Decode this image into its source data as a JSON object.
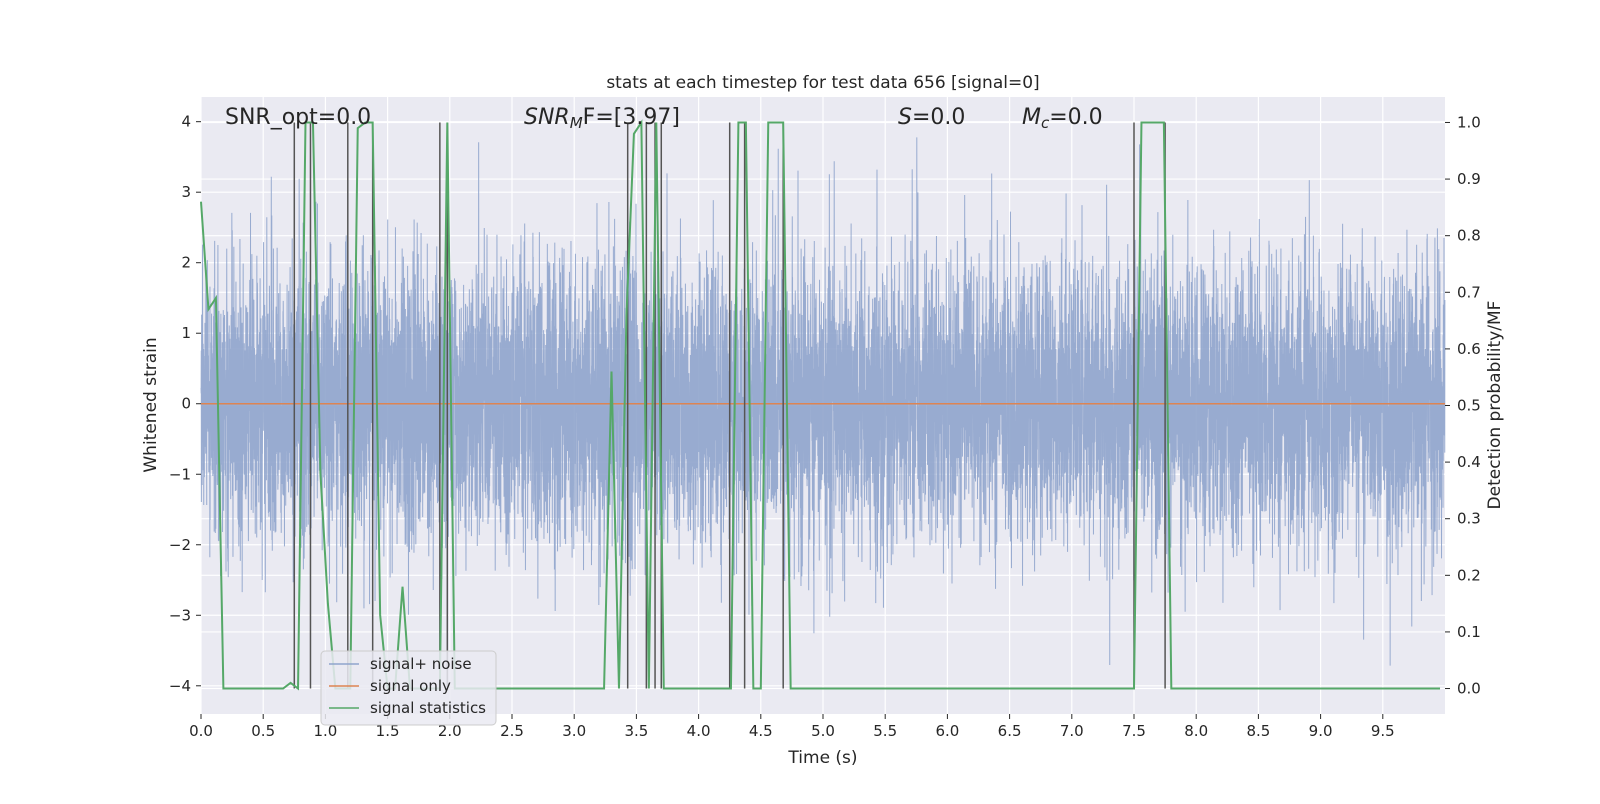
{
  "chart_data": {
    "type": "line",
    "title": "stats at each timestep for test data 656 [signal=0]",
    "xlabel": "Time (s)",
    "ylabel": "Whitened strain",
    "y2label": "Detection probability/MF",
    "xlim": [
      0,
      10
    ],
    "ylim": [
      -4.4,
      4.35
    ],
    "y2lim": [
      -0.045,
      1.045
    ],
    "x_ticks": [
      0.0,
      0.5,
      1.0,
      1.5,
      2.0,
      2.5,
      3.0,
      3.5,
      4.0,
      4.5,
      5.0,
      5.5,
      6.0,
      6.5,
      7.0,
      7.5,
      8.0,
      8.5,
      9.0,
      9.5
    ],
    "x_tick_labels": [
      "0.0",
      "0.5",
      "1.0",
      "1.5",
      "2.0",
      "2.5",
      "3.0",
      "3.5",
      "4.0",
      "4.5",
      "5.0",
      "5.5",
      "6.0",
      "6.5",
      "7.0",
      "7.5",
      "8.0",
      "8.5",
      "9.0",
      "9.5"
    ],
    "y_ticks": [
      -4,
      -3,
      -2,
      -1,
      0,
      1,
      2,
      3,
      4
    ],
    "y_tick_labels": [
      "−4",
      "−3",
      "−2",
      "−1",
      "0",
      "1",
      "2",
      "3",
      "4"
    ],
    "y2_ticks": [
      0.0,
      0.1,
      0.2,
      0.3,
      0.4,
      0.5,
      0.6,
      0.7,
      0.8,
      0.9,
      1.0
    ],
    "y2_tick_labels": [
      "0.0",
      "0.1",
      "0.2",
      "0.3",
      "0.4",
      "0.5",
      "0.6",
      "0.7",
      "0.8",
      "0.9",
      "1.0"
    ],
    "grid": true,
    "legend_position": "lower-left",
    "annotations": {
      "snr_opt": "SNR_opt=0.0",
      "snr_mf_main": "SNR",
      "snr_mf_sub": "M",
      "snr_mf_tail": "F=[3.97]",
      "s_main": "S",
      "s_tail": "=0.0",
      "mc_main": "M",
      "mc_sub": "c",
      "mc_tail": "=0.0"
    },
    "series": [
      {
        "name": "signal+ noise",
        "color": "#8fa4cc",
        "kind": "noise",
        "sample_rate": 1000,
        "std": 1.0,
        "range": [
          -4.05,
          3.95
        ]
      },
      {
        "name": "signal only",
        "color": "#dd8452",
        "x": [
          0,
          10
        ],
        "y": [
          0,
          0
        ]
      },
      {
        "name": "signal statistics",
        "color": "#55a868",
        "axis": "right",
        "x": [
          0.0,
          0.06,
          0.12,
          0.18,
          0.24,
          0.3,
          0.36,
          0.42,
          0.48,
          0.54,
          0.6,
          0.66,
          0.72,
          0.78,
          0.84,
          0.9,
          0.96,
          1.02,
          1.08,
          1.14,
          1.2,
          1.26,
          1.32,
          1.38,
          1.44,
          1.5,
          1.56,
          1.62,
          1.68,
          1.74,
          1.8,
          1.86,
          1.92,
          1.98,
          2.04,
          2.1,
          2.16,
          2.22,
          2.28,
          2.34,
          2.4,
          2.46,
          2.52,
          2.58,
          2.64,
          2.7,
          2.76,
          2.82,
          2.88,
          2.94,
          3.0,
          3.06,
          3.12,
          3.18,
          3.24,
          3.3,
          3.36,
          3.42,
          3.48,
          3.54,
          3.6,
          3.66,
          3.72,
          3.78,
          3.84,
          3.9,
          3.96,
          4.02,
          4.08,
          4.14,
          4.2,
          4.26,
          4.32,
          4.38,
          4.44,
          4.5,
          4.56,
          4.62,
          4.68,
          4.74,
          4.8,
          4.86,
          4.92,
          4.98,
          5.04,
          5.1,
          5.16,
          5.22,
          5.28,
          5.34,
          5.4,
          5.46,
          5.52,
          5.58,
          5.64,
          5.7,
          5.76,
          5.82,
          5.88,
          5.94,
          6.0,
          6.06,
          6.12,
          6.18,
          6.24,
          6.3,
          6.36,
          6.42,
          6.48,
          6.54,
          6.6,
          6.66,
          6.72,
          6.78,
          6.84,
          6.9,
          6.96,
          7.02,
          7.08,
          7.14,
          7.2,
          7.26,
          7.32,
          7.38,
          7.44,
          7.5,
          7.56,
          7.62,
          7.68,
          7.74,
          7.8,
          7.86,
          7.92,
          7.98,
          8.04,
          8.1,
          8.16,
          8.22,
          8.28,
          8.34,
          8.4,
          8.46,
          8.52,
          8.58,
          8.64,
          8.7,
          8.76,
          8.82,
          8.88,
          8.94,
          9.0,
          9.06,
          9.12,
          9.18,
          9.24,
          9.3,
          9.36,
          9.42,
          9.48,
          9.54,
          9.6,
          9.66,
          9.72,
          9.78,
          9.84,
          9.9,
          9.96
        ],
        "y": [
          0.86,
          0.67,
          0.69,
          0.0,
          0.0,
          0.0,
          0.0,
          0.0,
          0.0,
          0.0,
          0.0,
          0.0,
          0.01,
          0.0,
          1.0,
          1.0,
          0.38,
          0.15,
          0.0,
          0.0,
          0.0,
          0.99,
          1.0,
          1.0,
          0.13,
          0.0,
          0.0,
          0.18,
          0.0,
          0.0,
          0.0,
          0.0,
          0.0,
          1.0,
          0.0,
          0.0,
          0.0,
          0.0,
          0.0,
          0.0,
          0.0,
          0.0,
          0.0,
          0.0,
          0.0,
          0.0,
          0.0,
          0.0,
          0.0,
          0.0,
          0.0,
          0.0,
          0.0,
          0.0,
          0.0,
          0.56,
          0.0,
          0.66,
          0.98,
          1.0,
          0.0,
          1.0,
          0.0,
          0.0,
          0.0,
          0.0,
          0.0,
          0.0,
          0.0,
          0.0,
          0.0,
          0.0,
          1.0,
          1.0,
          0.0,
          0.0,
          1.0,
          1.0,
          1.0,
          0.0,
          0.0,
          0.0,
          0.0,
          0.0,
          0.0,
          0.0,
          0.0,
          0.0,
          0.0,
          0.0,
          0.0,
          0.0,
          0.0,
          0.0,
          0.0,
          0.0,
          0.0,
          0.0,
          0.0,
          0.0,
          0.0,
          0.0,
          0.0,
          0.0,
          0.0,
          0.0,
          0.0,
          0.0,
          0.0,
          0.0,
          0.0,
          0.0,
          0.0,
          0.0,
          0.0,
          0.0,
          0.0,
          0.0,
          0.0,
          0.0,
          0.0,
          0.0,
          0.0,
          0.0,
          0.0,
          0.0,
          1.0,
          1.0,
          1.0,
          1.0,
          0.0,
          0.0,
          0.0,
          0.0,
          0.0,
          0.0,
          0.0,
          0.0,
          0.0,
          0.0,
          0.0,
          0.0,
          0.0,
          0.0,
          0.0,
          0.0,
          0.0,
          0.0,
          0.0,
          0.0,
          0.0,
          0.0,
          0.0,
          0.0,
          0.0,
          0.0,
          0.0,
          0.0,
          0.0,
          0.0,
          0.0,
          0.0,
          0.0,
          0.0,
          0.0,
          0.0,
          0.0
        ]
      }
    ],
    "vertical_markers": {
      "color": "#555555",
      "x": [
        0.75,
        0.88,
        1.18,
        1.38,
        1.92,
        1.98,
        3.43,
        3.58,
        3.65,
        3.7,
        4.25,
        4.37,
        4.68,
        7.5,
        7.75
      ]
    }
  }
}
